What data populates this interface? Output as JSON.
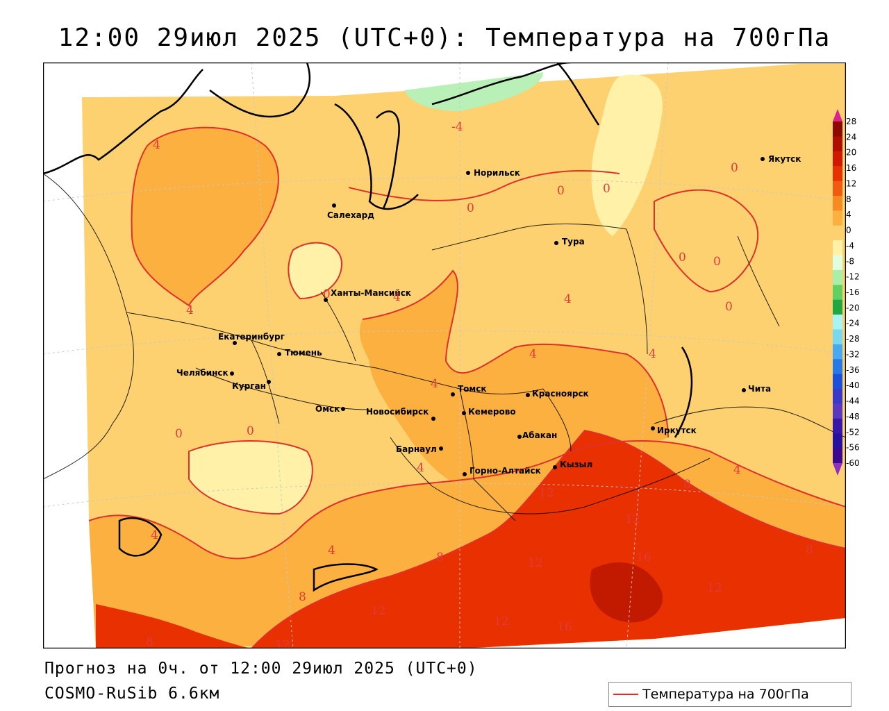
{
  "title": "12:00 29июл 2025 (UTC+0): Температура на 700гПа",
  "footer": {
    "forecast": "Прогноз на 0ч. от 12:00 29июл 2025 (UTC+0)",
    "model": "COSMO-RuSib 6.6км"
  },
  "legend": {
    "label": "Температура на 700гПа"
  },
  "cities": [
    {
      "name": "Якутск"
    },
    {
      "name": "Норильск"
    },
    {
      "name": "Салехард"
    },
    {
      "name": "Тура"
    },
    {
      "name": "Ханты-Мансийск"
    },
    {
      "name": "Екатеринбург"
    },
    {
      "name": "Тюмень"
    },
    {
      "name": "Челябинск"
    },
    {
      "name": "Курган"
    },
    {
      "name": "Омск"
    },
    {
      "name": "Новосибирск"
    },
    {
      "name": "Томск"
    },
    {
      "name": "Кемерово"
    },
    {
      "name": "Красноярск"
    },
    {
      "name": "Абакан"
    },
    {
      "name": "Барнаул"
    },
    {
      "name": "Горно-Алтайск"
    },
    {
      "name": "Кызыл"
    },
    {
      "name": "Иркутск"
    },
    {
      "name": "Чита"
    }
  ],
  "contour_labels": [
    "-4",
    "4",
    "4",
    "0",
    "0",
    "0",
    "4",
    "4",
    "4",
    "4",
    "0",
    "0",
    "0",
    "0",
    "0",
    "4",
    "4",
    "0",
    "0",
    "4",
    "4",
    "4",
    "8",
    "8",
    "8",
    "12",
    "12",
    "12",
    "16",
    "12",
    "12",
    "12",
    "16",
    "8",
    "12",
    "8"
  ],
  "colorbar": {
    "ticks": [
      "28",
      "24",
      "20",
      "16",
      "12",
      "8",
      "4",
      "0",
      "-4",
      "-8",
      "-12",
      "-16",
      "-20",
      "-24",
      "-28",
      "-32",
      "-36",
      "-40",
      "-44",
      "-48",
      "-52",
      "-56",
      "-60"
    ],
    "colors": [
      "#8c0a00",
      "#b00f00",
      "#d21800",
      "#e83000",
      "#f25a10",
      "#f78a20",
      "#fbb040",
      "#fdd070",
      "#fff2a8",
      "#e0ffe0",
      "#a8f0a8",
      "#60d060",
      "#20a840",
      "#a8f4f4",
      "#78d8f0",
      "#48a8f0",
      "#2878e8",
      "#1c50d8",
      "#3a38c8",
      "#5a38c0",
      "#3818a8",
      "#2810a0",
      "#3c0890"
    ],
    "top_color": "#e0208c",
    "bottom_color": "#9030c0"
  }
}
